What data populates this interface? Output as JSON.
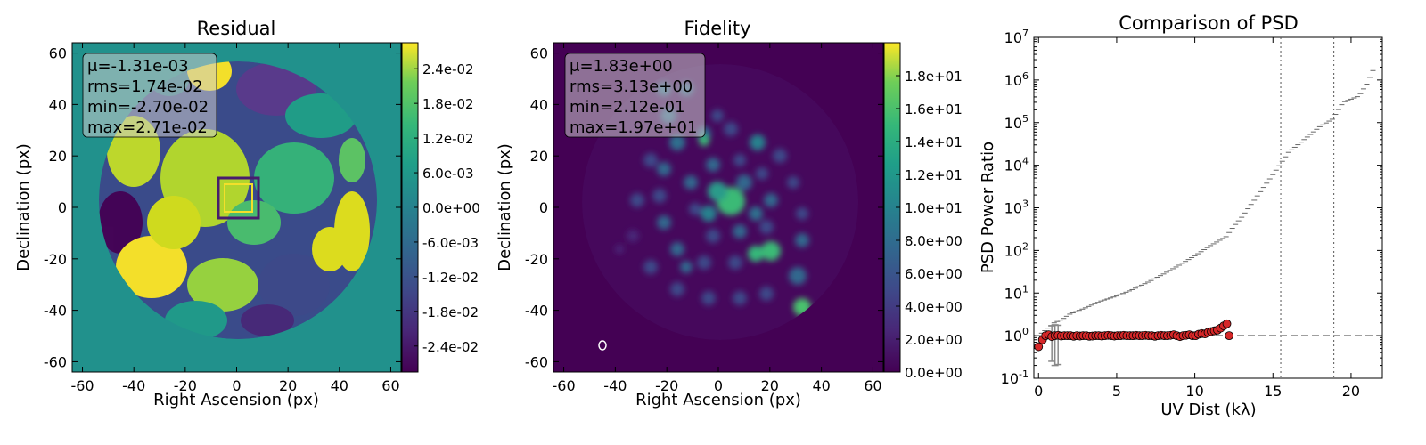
{
  "figure": {
    "panels": [
      {
        "title": "Residual",
        "xlabel": "Right Ascension (px)",
        "ylabel": "Declination (px)",
        "stats": [
          "μ=-1.31e-03",
          "rms=1.74e-02",
          "min=-2.70e-02",
          "max=2.71e-02"
        ],
        "colorbar_ticks": [
          "2.4e-02",
          "1.8e-02",
          "1.2e-02",
          "6.0e-03",
          "0.0e+00",
          "-6.0e-03",
          "-1.2e-02",
          "-1.8e-02",
          "-2.4e-02"
        ]
      },
      {
        "title": "Fidelity",
        "xlabel": "Right Ascension (px)",
        "ylabel": "Declination (px)",
        "stats": [
          "μ=1.83e+00",
          "rms=3.13e+00",
          "min=2.12e-01",
          "max=1.97e+01"
        ],
        "colorbar_ticks": [
          "1.8e+01",
          "1.6e+01",
          "1.4e+01",
          "1.2e+01",
          "1.0e+01",
          "8.0e+00",
          "6.0e+00",
          "4.0e+00",
          "2.0e+00",
          "0.0e+00"
        ]
      },
      {
        "title": "Comparison of PSD",
        "xlabel": "UV Dist (kλ)",
        "ylabel": "PSD Power Ratio"
      }
    ],
    "colors": {
      "viridis_low": "#440154",
      "viridis_mid": "#21918c",
      "viridis_high": "#fde725",
      "points": "#d62728",
      "stat_box": "#cccccc"
    }
  },
  "chart_data": [
    {
      "type": "heatmap",
      "title": "Residual",
      "xlabel": "Right Ascension (px)",
      "ylabel": "Declination (px)",
      "xlim": [
        -64,
        64
      ],
      "ylim": [
        -64,
        64
      ],
      "xticks": [
        -60,
        -40,
        -20,
        0,
        20,
        40,
        60
      ],
      "yticks": [
        -60,
        -40,
        -20,
        0,
        20,
        40,
        60
      ],
      "colormap": "viridis",
      "clim": [
        -0.0285,
        0.0285
      ],
      "colorbar_ticks": [
        0.024,
        0.018,
        0.012,
        0.006,
        0.0,
        -0.006,
        -0.012,
        -0.018,
        -0.024
      ],
      "stats": {
        "mean": -0.00131,
        "rms": 0.0174,
        "min": -0.027,
        "max": 0.0271
      }
    },
    {
      "type": "heatmap",
      "title": "Fidelity",
      "xlabel": "Right Ascension (px)",
      "ylabel": "Declination (px)",
      "xlim": [
        -64,
        64
      ],
      "ylim": [
        -64,
        64
      ],
      "xticks": [
        -60,
        -40,
        -20,
        0,
        20,
        40,
        60
      ],
      "yticks": [
        -60,
        -40,
        -20,
        0,
        20,
        40,
        60
      ],
      "colormap": "viridis",
      "clim": [
        0,
        20
      ],
      "colorbar_ticks": [
        18,
        16,
        14,
        12,
        10,
        8,
        6,
        4,
        2,
        0
      ],
      "stats": {
        "mean": 1.83,
        "rms": 3.13,
        "min": 0.212,
        "max": 19.7
      }
    },
    {
      "type": "scatter",
      "title": "Comparison of PSD",
      "xlabel": "UV Dist (kλ)",
      "ylabel": "PSD Power Ratio",
      "yscale": "log",
      "xlim": [
        -0.3,
        22
      ],
      "ylim": [
        0.1,
        10000000
      ],
      "xticks": [
        0,
        5,
        10,
        15,
        20
      ],
      "yticks_exponents": [
        -1,
        0,
        1,
        2,
        3,
        4,
        5,
        6,
        7
      ],
      "reference_hline": 1,
      "vlines": [
        15.5,
        18.9
      ],
      "points": {
        "x": [
          0.0,
          0.25,
          0.45,
          0.65,
          0.85,
          1.05,
          1.25,
          1.45,
          1.65,
          1.85,
          2.05,
          2.25,
          2.45,
          2.65,
          2.85,
          3.05,
          3.25,
          3.45,
          3.65,
          3.85,
          4.05,
          4.25,
          4.45,
          4.65,
          4.85,
          5.05,
          5.25,
          5.45,
          5.65,
          5.85,
          6.05,
          6.25,
          6.45,
          6.65,
          6.85,
          7.05,
          7.25,
          7.45,
          7.65,
          7.85,
          8.05,
          8.25,
          8.45,
          8.65,
          8.85,
          9.05,
          9.25,
          9.45,
          9.65,
          9.85,
          10.05,
          10.25,
          10.45,
          10.65,
          10.85,
          11.05,
          11.25,
          11.45,
          11.65,
          11.85,
          12.05,
          12.2
        ],
        "y": [
          0.55,
          0.8,
          1.0,
          1.05,
          0.95,
          1.0,
          1.02,
          0.98,
          1.0,
          1.0,
          1.0,
          0.97,
          1.0,
          0.98,
          1.0,
          1.0,
          0.97,
          0.98,
          1.0,
          1.0,
          0.98,
          1.0,
          1.02,
          1.0,
          0.98,
          1.0,
          1.0,
          1.02,
          1.0,
          1.0,
          1.0,
          1.02,
          1.0,
          1.0,
          1.02,
          1.0,
          1.0,
          0.97,
          1.0,
          1.02,
          1.0,
          1.0,
          1.02,
          1.05,
          1.0,
          0.95,
          1.0,
          1.02,
          1.05,
          1.0,
          1.0,
          1.08,
          1.12,
          1.1,
          1.2,
          1.25,
          1.3,
          1.35,
          1.5,
          1.7,
          1.9,
          1.0
        ],
        "errorbars": [
          {
            "x": 0.85,
            "lo": 0.25,
            "hi": 1.7
          },
          {
            "x": 1.05,
            "lo": 0.2,
            "hi": 1.8
          },
          {
            "x": 1.25,
            "lo": 0.21,
            "hi": 1.75
          }
        ]
      },
      "ratio_curve": {
        "x": [
          0.0,
          0.5,
          1.0,
          1.5,
          2.0,
          3.0,
          4.0,
          5.0,
          6.0,
          7.0,
          8.0,
          9.0,
          10.0,
          11.0,
          12.0,
          12.5,
          13.0,
          14.0,
          15.0,
          16.0,
          17.0,
          18.0,
          18.8,
          19.5,
          20.5,
          21.0,
          21.5
        ],
        "y": [
          1.0,
          1.4,
          2.0,
          2.4,
          3.2,
          4.5,
          6.5,
          8.5,
          12,
          18,
          28,
          45,
          75,
          130,
          210,
          370,
          600,
          1900,
          6000,
          20000,
          40000,
          80000,
          120000,
          300000,
          420000,
          800000,
          2000000
        ]
      }
    }
  ]
}
